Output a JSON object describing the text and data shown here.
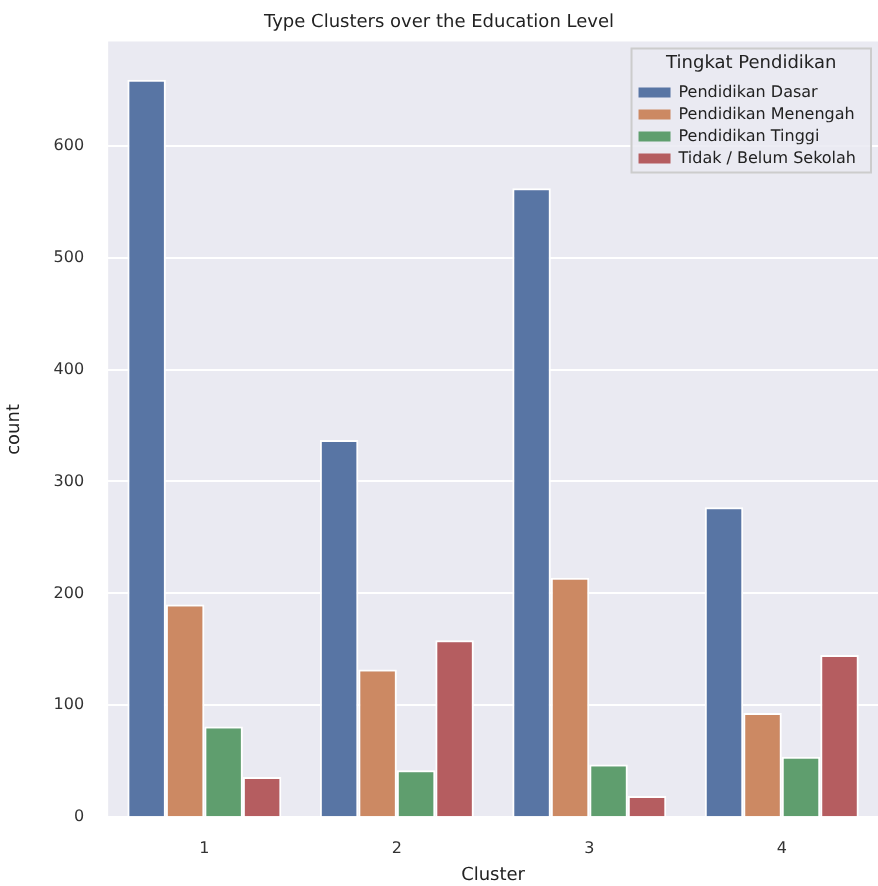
{
  "chart_data": {
    "type": "bar",
    "title": "Type Clusters over the Education Level",
    "xlabel": "Cluster",
    "ylabel": "count",
    "legend_title": "Tingkat Pendidikan",
    "categories": [
      "1",
      "2",
      "3",
      "4"
    ],
    "series": [
      {
        "name": "Pendidikan Dasar",
        "color": "#5875a4",
        "values": [
          659,
          337,
          562,
          277
        ]
      },
      {
        "name": "Pendidikan Menengah",
        "color": "#cc8963",
        "values": [
          190,
          132,
          214,
          93
        ]
      },
      {
        "name": "Pendidikan Tinggi",
        "color": "#5f9e6e",
        "values": [
          81,
          42,
          47,
          54
        ]
      },
      {
        "name": "Tidak / Belum Sekolah",
        "color": "#b55d60",
        "values": [
          36,
          158,
          19,
          145
        ]
      }
    ],
    "ylim": [
      0,
      693
    ],
    "yticks": [
      0,
      100,
      200,
      300,
      400,
      500,
      600
    ],
    "grid": "y",
    "legend": "top right"
  }
}
